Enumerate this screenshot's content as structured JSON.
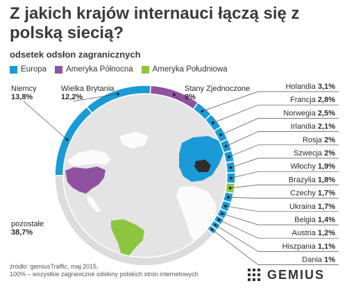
{
  "title": "Z jakich krajów internauci łączą się z polską siecią?",
  "subtitle": "odsetek odsłon zagranicznych",
  "legend": [
    {
      "label": "Europa",
      "color": "#1a9bd7"
    },
    {
      "label": "Ameryka Północna",
      "color": "#8f52a1"
    },
    {
      "label": "Ameryka Południowa",
      "color": "#8cc63f"
    }
  ],
  "chart_data": {
    "type": "pie",
    "title": "Z jakich krajów internauci łączą się z polską siecią?",
    "subtitle": "odsetek odsłon zagranicznych",
    "unit": "%",
    "slices": [
      {
        "name": "Niemcy",
        "value": 13.8,
        "label": "13,8%",
        "region": "Europa"
      },
      {
        "name": "Wielka Brytania",
        "value": 12.2,
        "label": "12,2%",
        "region": "Europa"
      },
      {
        "name": "Stany Zjednoczone",
        "value": 9,
        "label": "9%",
        "region": "Ameryka Północna"
      },
      {
        "name": "Holandia",
        "value": 3.1,
        "label": "3,1%",
        "region": "Europa"
      },
      {
        "name": "Francja",
        "value": 2.8,
        "label": "2,8%",
        "region": "Europa"
      },
      {
        "name": "Norwegia",
        "value": 2.5,
        "label": "2,5%",
        "region": "Europa"
      },
      {
        "name": "Irlandia",
        "value": 2.1,
        "label": "2,1%",
        "region": "Europa"
      },
      {
        "name": "Rosja",
        "value": 2,
        "label": "2%",
        "region": "Europa"
      },
      {
        "name": "Szwecja",
        "value": 2,
        "label": "2%",
        "region": "Europa"
      },
      {
        "name": "Włochy",
        "value": 1.9,
        "label": "1,9%",
        "region": "Europa"
      },
      {
        "name": "Brazylia",
        "value": 1.8,
        "label": "1,8%",
        "region": "Ameryka Południowa"
      },
      {
        "name": "Czechy",
        "value": 1.7,
        "label": "1,7%",
        "region": "Europa"
      },
      {
        "name": "Ukraina",
        "value": 1.7,
        "label": "1,7%",
        "region": "Europa"
      },
      {
        "name": "Belgia",
        "value": 1.4,
        "label": "1,4%",
        "region": "Europa"
      },
      {
        "name": "Austria",
        "value": 1.2,
        "label": "1,2%",
        "region": "Europa"
      },
      {
        "name": "Hiszpania",
        "value": 1.1,
        "label": "1,1%",
        "region": "Europa"
      },
      {
        "name": "Dania",
        "value": 1,
        "label": "1%",
        "region": "Europa"
      },
      {
        "name": "pozostałe",
        "value": 38.7,
        "label": "38,7%",
        "region": ""
      }
    ],
    "colors": {
      "Europa": "#1a9bd7",
      "Ameryka Północna": "#8f52a1",
      "Ameryka Południowa": "#8cc63f",
      "other": "#dcdcdc"
    }
  },
  "footer": {
    "line1": "źródło: gemiusTraffic, maj 2015,",
    "line2": "100% – wszystkie zagraniczne odsłony polskich stron internetowych"
  },
  "logo": {
    "word": "GEMIUS"
  }
}
